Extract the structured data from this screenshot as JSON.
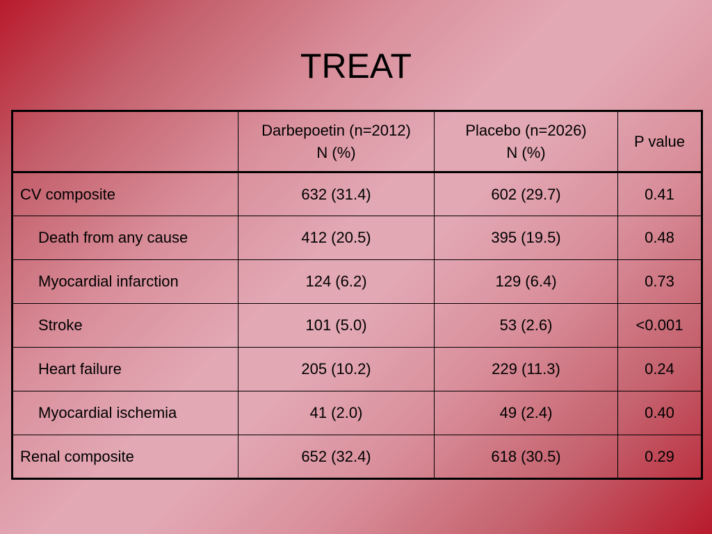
{
  "slide": {
    "title": "TREAT"
  },
  "table": {
    "headers": [
      {
        "line1": "",
        "line2": ""
      },
      {
        "line1": "Darbepoetin (n=2012)",
        "line2": "N (%)"
      },
      {
        "line1": "Placebo (n=2026)",
        "line2": "N (%)"
      },
      {
        "line1": "P value",
        "line2": ""
      }
    ],
    "rows": [
      {
        "label": "CV composite",
        "indent": false,
        "darbepoetin": "632 (31.4)",
        "placebo": "602 (29.7)",
        "p_value": "0.41"
      },
      {
        "label": "Death from any cause",
        "indent": true,
        "darbepoetin": "412 (20.5)",
        "placebo": "395 (19.5)",
        "p_value": "0.48"
      },
      {
        "label": "Myocardial infarction",
        "indent": true,
        "darbepoetin": "124 (6.2)",
        "placebo": "129 (6.4)",
        "p_value": "0.73"
      },
      {
        "label": "Stroke",
        "indent": true,
        "darbepoetin": "101 (5.0)",
        "placebo": "53 (2.6)",
        "p_value": "<0.001"
      },
      {
        "label": "Heart failure",
        "indent": true,
        "darbepoetin": "205 (10.2)",
        "placebo": "229 (11.3)",
        "p_value": "0.24"
      },
      {
        "label": "Myocardial ischemia",
        "indent": true,
        "darbepoetin": "41 (2.0)",
        "placebo": "49 (2.4)",
        "p_value": "0.40"
      },
      {
        "label": "Renal composite",
        "indent": false,
        "darbepoetin": "652 (32.4)",
        "placebo": "618 (30.5)",
        "p_value": "0.29"
      }
    ]
  }
}
